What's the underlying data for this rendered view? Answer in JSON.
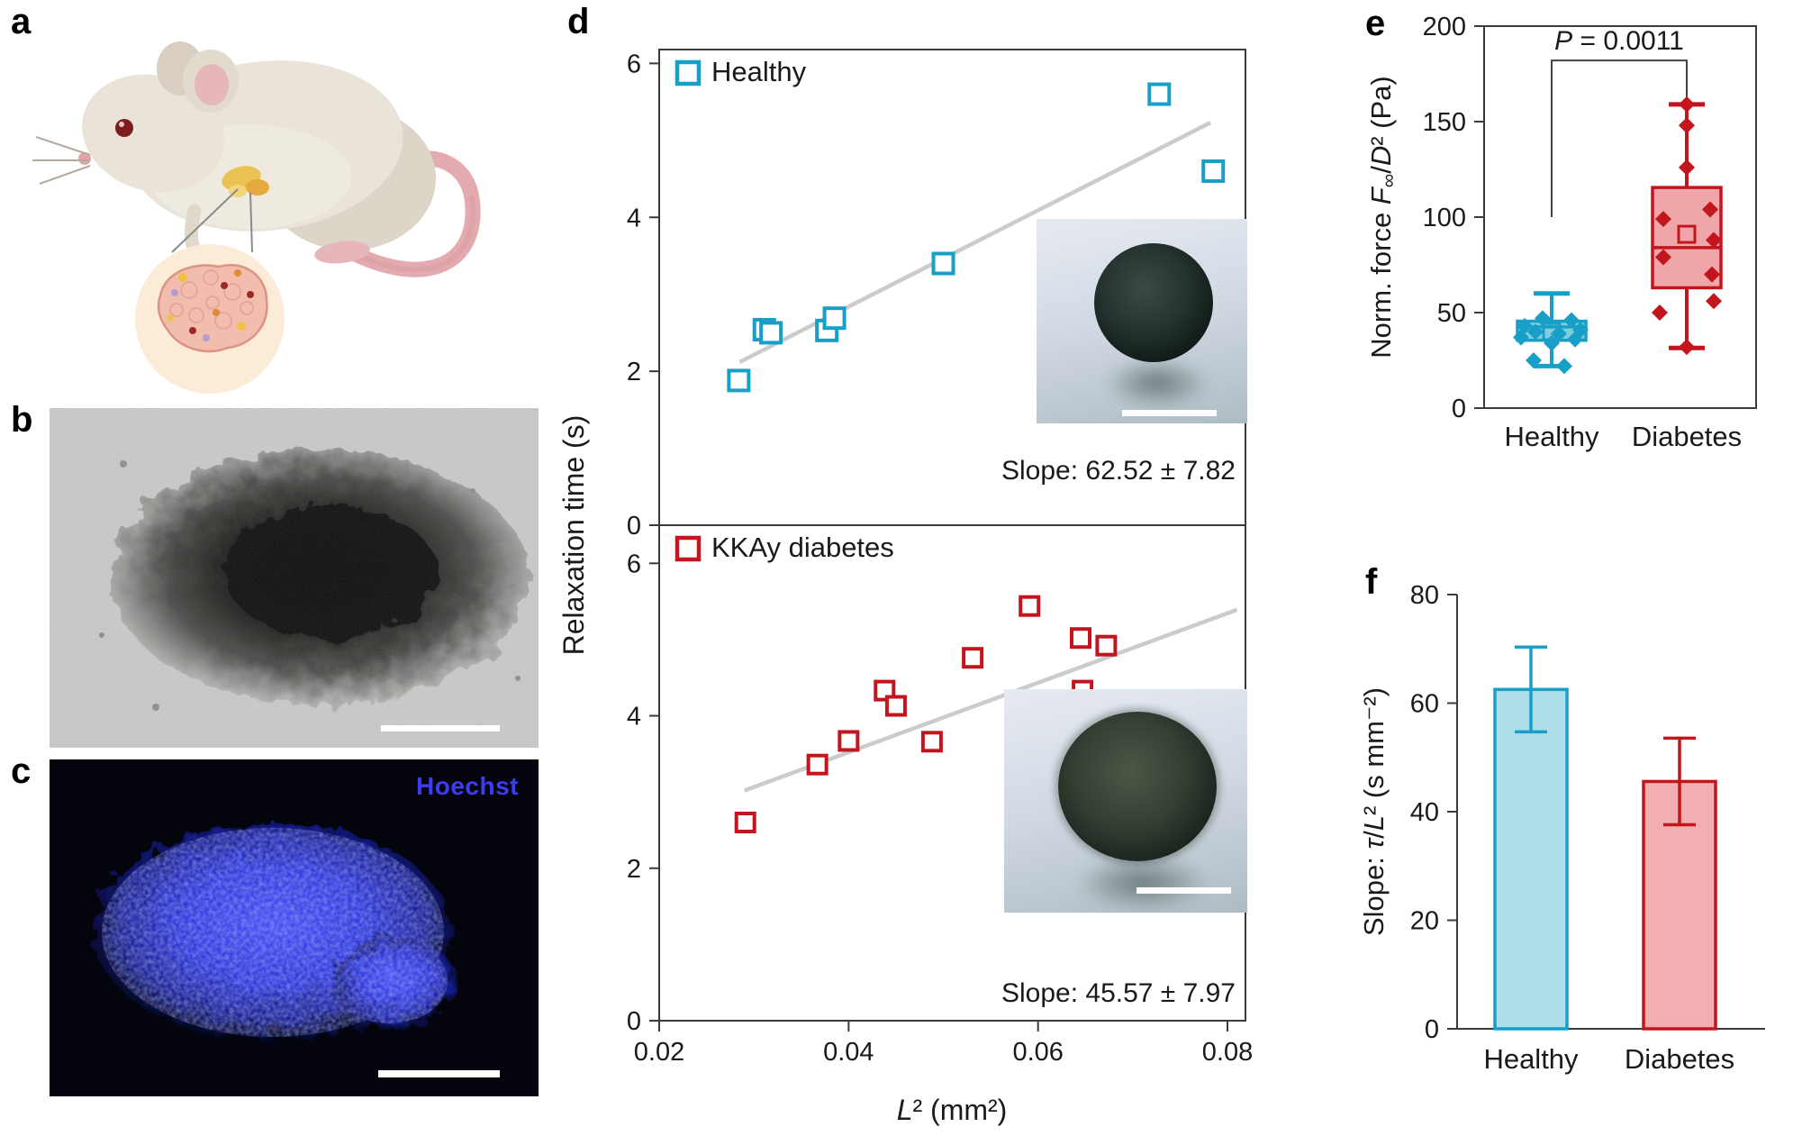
{
  "panels": {
    "a_letter": "a",
    "b_letter": "b",
    "c_letter": "c",
    "d_letter": "d",
    "e_letter": "e",
    "f_letter": "f"
  },
  "labels": {
    "hoechst": "Hoechst",
    "relaxation_ylabel": "Relaxation time (s)",
    "d_xlabel_rich": [
      {
        "t": "L",
        "i": 1
      },
      {
        "t": "² (mm²)"
      }
    ],
    "e_ylabel_rich": [
      {
        "t": "Norm. force "
      },
      {
        "t": "F",
        "i": 1
      },
      {
        "t": "∞",
        "sub": 1
      },
      {
        "t": "/"
      },
      {
        "t": "D",
        "i": 1
      },
      {
        "t": "² (Pa)"
      }
    ],
    "f_ylabel_rich": [
      {
        "t": "Slope: "
      },
      {
        "t": "τ",
        "i": 1
      },
      {
        "t": "/"
      },
      {
        "t": "L",
        "i": 1
      },
      {
        "t": "² (s mm⁻²)"
      }
    ]
  },
  "chart_data": [
    {
      "id": "relaxation_vs_L2_healthy",
      "type": "scatter",
      "legend": "Healthy",
      "color": "#189fc8",
      "xlabel": "L2 (mm2)",
      "ylabel": "Relaxation time (s)",
      "xlim": [
        0.02,
        0.0819
      ],
      "ylim": [
        0,
        6.18
      ],
      "x_ticks": [
        0.02,
        0.04,
        0.06,
        0.08
      ],
      "y_ticks": [
        0,
        2,
        4,
        6
      ],
      "points": [
        [
          0.0284,
          1.88
        ],
        [
          0.0311,
          2.54
        ],
        [
          0.0318,
          2.5
        ],
        [
          0.0377,
          2.53
        ],
        [
          0.0385,
          2.69
        ],
        [
          0.05,
          3.4
        ],
        [
          0.0728,
          5.6
        ],
        [
          0.0785,
          4.6
        ]
      ],
      "fit_line": [
        [
          0.0285,
          2.12
        ],
        [
          0.0782,
          5.23
        ]
      ],
      "slope_label": "Slope:  62.52 ± 7.82"
    },
    {
      "id": "relaxation_vs_L2_kkay_diabetes",
      "type": "scatter",
      "legend": "KKAy diabetes",
      "color": "#c2151d",
      "xlabel": "L2 (mm2)",
      "ylabel": "Relaxation time (s)",
      "xlim": [
        0.02,
        0.0819
      ],
      "ylim": [
        0,
        6.5
      ],
      "x_ticks": [
        0.02,
        0.04,
        0.06,
        0.08
      ],
      "y_ticks": [
        0,
        2,
        4,
        6
      ],
      "points": [
        [
          0.0291,
          2.6
        ],
        [
          0.0367,
          3.36
        ],
        [
          0.04,
          3.67
        ],
        [
          0.0438,
          4.33
        ],
        [
          0.045,
          4.13
        ],
        [
          0.0488,
          3.66
        ],
        [
          0.0531,
          4.76
        ],
        [
          0.0591,
          5.44
        ],
        [
          0.0645,
          5.02
        ],
        [
          0.0672,
          4.92
        ],
        [
          0.0647,
          4.33
        ]
      ],
      "fit_line": [
        [
          0.029,
          3.02
        ],
        [
          0.081,
          5.39
        ]
      ],
      "slope_label": "Slope:  45.57 ± 7.97"
    },
    {
      "id": "norm_force_boxplot",
      "type": "box",
      "categories": [
        "Healthy",
        "Diabetes"
      ],
      "ylim": [
        0,
        200
      ],
      "y_ticks": [
        0,
        50,
        100,
        150,
        200
      ],
      "significance": {
        "label_rich": [
          {
            "t": "P",
            "i": 1
          },
          {
            "t": " = 0.0011"
          }
        ],
        "bar_y": 182,
        "left_leg_to": 100,
        "right_leg_to": 161
      },
      "series": [
        {
          "name": "Healthy",
          "color": "#189fc8",
          "fill": "#7ecddd",
          "whisker_low": 22,
          "q1": 35.5,
          "median": 42.5,
          "q3": 45.5,
          "whisker_high": 60,
          "mean": 40,
          "points": [
            [
              -10,
              47
            ],
            [
              22,
              46
            ],
            [
              -30,
              43
            ],
            [
              32,
              41
            ],
            [
              -18,
              40
            ],
            [
              8,
              39
            ],
            [
              -34,
              37
            ],
            [
              26,
              36
            ],
            [
              0,
              34
            ],
            [
              -20,
              25
            ],
            [
              14,
              22
            ]
          ]
        },
        {
          "name": "Diabetes",
          "color": "#c2151d",
          "fill": "#f0a5a8",
          "whisker_low": 31.5,
          "q1": 63,
          "median": 84,
          "q3": 115.5,
          "whisker_high": 159,
          "mean": 91,
          "points": [
            [
              0,
              159
            ],
            [
              0,
              148
            ],
            [
              0,
              126
            ],
            [
              26,
              104
            ],
            [
              -26,
              99
            ],
            [
              30,
              88
            ],
            [
              -26,
              79
            ],
            [
              28,
              70
            ],
            [
              30,
              56
            ],
            [
              -30,
              50
            ],
            [
              0,
              32
            ]
          ]
        }
      ]
    },
    {
      "id": "slope_bars",
      "type": "bar",
      "categories": [
        "Healthy",
        "Diabetes"
      ],
      "values": [
        62.52,
        45.57
      ],
      "errors": [
        7.82,
        7.97
      ],
      "colors": [
        "#189fc8",
        "#c2151d"
      ],
      "fills": [
        "#aedfe9",
        "#f3aeb1"
      ],
      "ylim": [
        0,
        80
      ],
      "y_ticks": [
        0,
        20,
        40,
        60,
        80
      ]
    }
  ]
}
